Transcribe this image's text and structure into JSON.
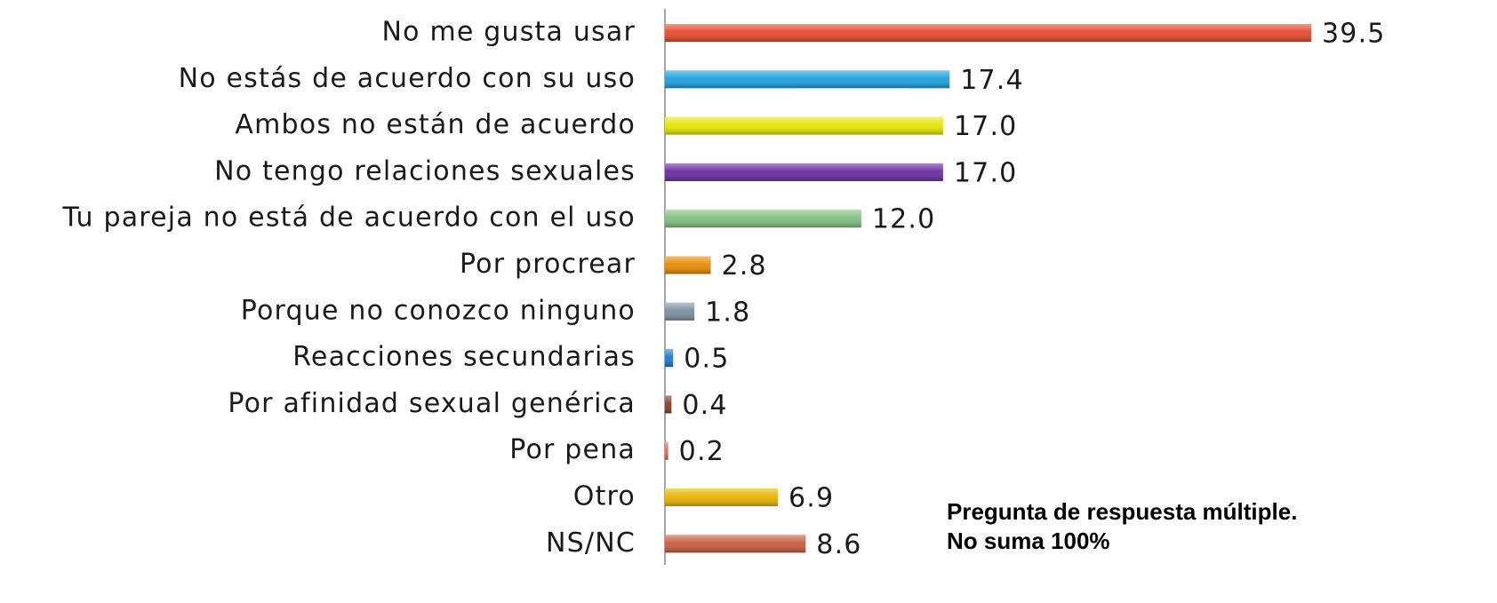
{
  "chart_data": {
    "type": "barh",
    "categories": [
      "No me gusta usar",
      "No estás de acuerdo con su uso",
      "Ambos no están de acuerdo",
      "No tengo relaciones sexuales",
      "Tu pareja no está de acuerdo con el uso",
      "Por procrear",
      "Porque no conozco ninguno",
      "Reacciones secundarias",
      "Por afinidad sexual genérica",
      "Por pena",
      "Otro",
      "NS/NC"
    ],
    "values": [
      39.5,
      17.4,
      17.0,
      17.0,
      12.0,
      2.8,
      1.8,
      0.5,
      0.4,
      0.2,
      6.9,
      8.6
    ],
    "value_labels": [
      "39.5",
      "17.4",
      "17.0",
      "17.0",
      "12.0",
      "2.8",
      "1.8",
      "0.5",
      "0.4",
      "0.2",
      "6.9",
      "8.6"
    ],
    "colors": [
      "#e8472a",
      "#1ca0e0",
      "#e6e600",
      "#6a2aa0",
      "#7fbf7f",
      "#e88a00",
      "#7a8fa0",
      "#1a78d0",
      "#8a3a2a",
      "#e86a50",
      "#e8b400",
      "#c85a3a"
    ],
    "annotations": [
      "Pregunta de respuesta múltiple.",
      "No suma 100%"
    ]
  }
}
